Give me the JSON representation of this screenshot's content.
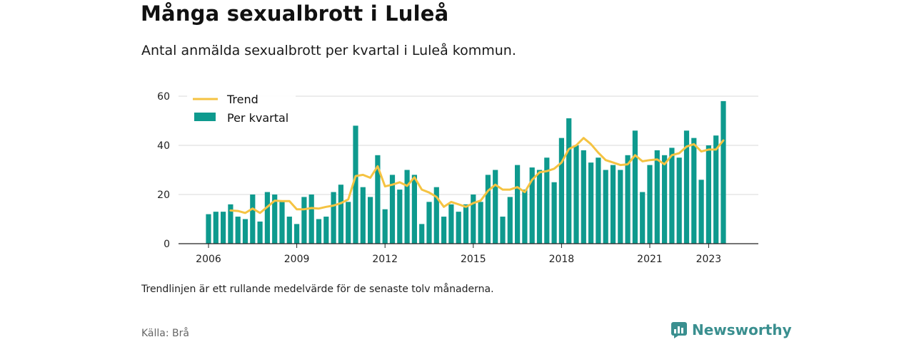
{
  "title": "Många sexualbrott i Luleå",
  "subtitle": "Antal anmälda sexualbrott per kvartal i Luleå kommun.",
  "note": "Trendlinjen är ett rullande medelvärde för de senaste tolv månaderna.",
  "source": "Källa: Brå",
  "brand": "Newsworthy",
  "colors": {
    "bars": "#0e9a8e",
    "trend": "#f5c342",
    "brand": "#3a8f8f"
  },
  "chart_data": {
    "type": "bar",
    "x_start": "2006 Q1",
    "x_ticks": [
      "2006",
      "2009",
      "2012",
      "2015",
      "2018",
      "2021",
      "2023"
    ],
    "y_ticks": [
      0,
      20,
      40,
      60
    ],
    "ylim": [
      0,
      60
    ],
    "grid": true,
    "legend_position": "top-left",
    "series": [
      {
        "name": "Per kvartal",
        "type": "bar",
        "values": [
          12,
          13,
          13,
          16,
          11,
          10,
          20,
          9,
          21,
          20,
          17,
          11,
          8,
          19,
          20,
          10,
          11,
          21,
          24,
          17,
          48,
          23,
          19,
          36,
          14,
          28,
          22,
          30,
          28,
          8,
          17,
          23,
          11,
          16,
          13,
          16,
          20,
          17,
          28,
          30,
          11,
          19,
          32,
          22,
          31,
          30,
          35,
          25,
          43,
          51,
          40,
          38,
          33,
          35,
          30,
          32,
          30,
          36,
          46,
          21,
          32,
          38,
          36,
          39,
          35,
          46,
          43,
          26,
          40,
          44,
          58
        ]
      },
      {
        "name": "Trend",
        "type": "line",
        "values": [
          null,
          null,
          null,
          13.5,
          13.3,
          12.5,
          14.3,
          12.5,
          15,
          17.5,
          17.3,
          17.3,
          14,
          14,
          14.5,
          14.3,
          15,
          15.5,
          16.5,
          18,
          27.5,
          28,
          26.8,
          31.5,
          23.3,
          24,
          25,
          23.5,
          27,
          22,
          20.8,
          19,
          15,
          17,
          16,
          15,
          16.5,
          17.5,
          21.5,
          24,
          22,
          22,
          23,
          21,
          26,
          29,
          29.5,
          30.5,
          33,
          38.5,
          40,
          43,
          40.5,
          37,
          34,
          33,
          32,
          32.3,
          36,
          33.5,
          34,
          34.3,
          32.3,
          36,
          36.8,
          39.5,
          40.5,
          37.5,
          38.3,
          38.3,
          42
        ]
      }
    ]
  }
}
